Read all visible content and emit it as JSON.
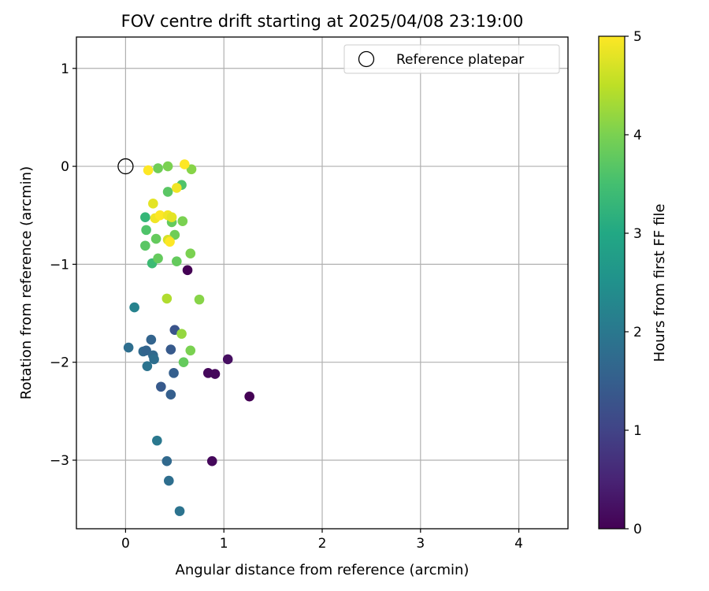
{
  "chart_data": {
    "type": "scatter",
    "title": "FOV centre drift starting at 2025/04/08 23:19:00",
    "xlabel": "Angular distance from reference (arcmin)",
    "ylabel": "Rotation from reference (arcmin)",
    "xlim": [
      -0.5,
      4.5
    ],
    "ylim": [
      -3.7,
      1.32
    ],
    "xticks": [
      0,
      1,
      2,
      3,
      4
    ],
    "yticks": [
      1,
      0,
      -1,
      -2,
      -3
    ],
    "xtick_labels": [
      "0",
      "1",
      "2",
      "3",
      "4"
    ],
    "ytick_labels": [
      "1",
      "0",
      "−1",
      "−2",
      "−3"
    ],
    "grid": true,
    "legend": {
      "label": "Reference platepar",
      "placement": "top-right"
    },
    "reference_point": {
      "x": 0,
      "y": 0
    },
    "colorbar": {
      "label": "Hours from first FF file",
      "range": [
        0,
        5
      ],
      "ticks": [
        0,
        1,
        2,
        3,
        4,
        5
      ],
      "colormap": "viridis"
    },
    "points": [
      {
        "x": 0.63,
        "y": -1.06,
        "c": 0.0
      },
      {
        "x": 0.84,
        "y": -2.11,
        "c": 0.1
      },
      {
        "x": 0.91,
        "y": -2.12,
        "c": 0.1
      },
      {
        "x": 1.04,
        "y": -1.97,
        "c": 0.2
      },
      {
        "x": 1.26,
        "y": -2.35,
        "c": 0.0
      },
      {
        "x": 0.88,
        "y": -3.01,
        "c": 0.1
      },
      {
        "x": 0.5,
        "y": -1.67,
        "c": 1.3
      },
      {
        "x": 0.46,
        "y": -1.87,
        "c": 1.4
      },
      {
        "x": 0.49,
        "y": -2.11,
        "c": 1.5
      },
      {
        "x": 0.36,
        "y": -2.25,
        "c": 1.4
      },
      {
        "x": 0.46,
        "y": -2.33,
        "c": 1.5
      },
      {
        "x": 0.26,
        "y": -1.77,
        "c": 1.6
      },
      {
        "x": 0.18,
        "y": -1.89,
        "c": 1.7
      },
      {
        "x": 0.21,
        "y": -1.88,
        "c": 1.6
      },
      {
        "x": 0.28,
        "y": -1.93,
        "c": 1.7
      },
      {
        "x": 0.29,
        "y": -1.97,
        "c": 1.8
      },
      {
        "x": 0.22,
        "y": -2.04,
        "c": 1.9
      },
      {
        "x": 0.03,
        "y": -1.85,
        "c": 1.8
      },
      {
        "x": 0.09,
        "y": -1.44,
        "c": 2.2
      },
      {
        "x": 0.32,
        "y": -2.8,
        "c": 2.0
      },
      {
        "x": 0.42,
        "y": -3.01,
        "c": 1.7
      },
      {
        "x": 0.44,
        "y": -3.21,
        "c": 1.8
      },
      {
        "x": 0.55,
        "y": -3.52,
        "c": 1.9
      },
      {
        "x": 0.2,
        "y": -0.52,
        "c": 3.3
      },
      {
        "x": 0.27,
        "y": -0.99,
        "c": 3.4
      },
      {
        "x": 0.21,
        "y": -0.65,
        "c": 3.6
      },
      {
        "x": 0.2,
        "y": -0.81,
        "c": 3.7
      },
      {
        "x": 0.31,
        "y": -0.74,
        "c": 3.8
      },
      {
        "x": 0.33,
        "y": -0.94,
        "c": 3.8
      },
      {
        "x": 0.33,
        "y": -0.02,
        "c": 3.9
      },
      {
        "x": 0.43,
        "y": 0.0,
        "c": 4.0
      },
      {
        "x": 0.43,
        "y": -0.26,
        "c": 3.7
      },
      {
        "x": 0.57,
        "y": -0.19,
        "c": 3.6
      },
      {
        "x": 0.47,
        "y": -0.57,
        "c": 3.8
      },
      {
        "x": 0.5,
        "y": -0.7,
        "c": 3.9
      },
      {
        "x": 0.52,
        "y": -0.97,
        "c": 3.8
      },
      {
        "x": 0.58,
        "y": -0.56,
        "c": 4.0
      },
      {
        "x": 0.66,
        "y": -0.89,
        "c": 4.0
      },
      {
        "x": 0.67,
        "y": -0.03,
        "c": 4.1
      },
      {
        "x": 0.57,
        "y": -1.71,
        "c": 4.2
      },
      {
        "x": 0.66,
        "y": -1.88,
        "c": 4.0
      },
      {
        "x": 0.59,
        "y": -2.0,
        "c": 3.8
      },
      {
        "x": 0.75,
        "y": -1.36,
        "c": 4.1
      },
      {
        "x": 0.42,
        "y": -1.35,
        "c": 4.4
      },
      {
        "x": 0.23,
        "y": -0.04,
        "c": 5.0
      },
      {
        "x": 0.28,
        "y": -0.38,
        "c": 4.8
      },
      {
        "x": 0.3,
        "y": -0.53,
        "c": 4.9
      },
      {
        "x": 0.35,
        "y": -0.5,
        "c": 5.0
      },
      {
        "x": 0.43,
        "y": -0.5,
        "c": 4.9
      },
      {
        "x": 0.47,
        "y": -0.52,
        "c": 4.8
      },
      {
        "x": 0.43,
        "y": -0.75,
        "c": 4.7
      },
      {
        "x": 0.45,
        "y": -0.77,
        "c": 5.0
      },
      {
        "x": 0.52,
        "y": -0.22,
        "c": 4.9
      },
      {
        "x": 0.6,
        "y": 0.02,
        "c": 5.0
      }
    ]
  }
}
